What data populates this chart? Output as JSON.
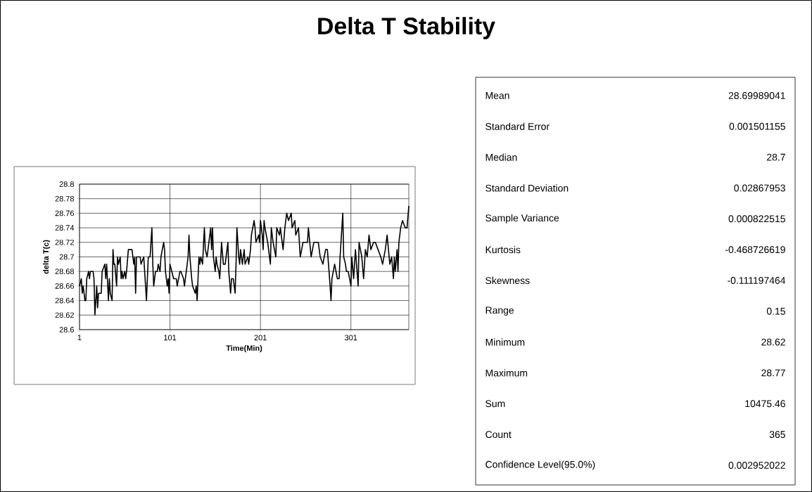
{
  "chart_data": [
    {
      "type": "line",
      "title": "Delta T Stability",
      "xlabel": "Time(Min)",
      "ylabel": "delta T(c)",
      "x": [
        1,
        3,
        4,
        5,
        7,
        8,
        9,
        11,
        12,
        13,
        16,
        17,
        18,
        20,
        21,
        22,
        25,
        26,
        29,
        30,
        31,
        33,
        34,
        35,
        37,
        38,
        39,
        40,
        42,
        43,
        44,
        46,
        47,
        48,
        49,
        51,
        52,
        53,
        55,
        56,
        59,
        60,
        61,
        62,
        63,
        64,
        66,
        68,
        69,
        72,
        74,
        75,
        77,
        79,
        81,
        82,
        83,
        85,
        87,
        88,
        90,
        91,
        94,
        95,
        96,
        98,
        99,
        100,
        101,
        103,
        105,
        108,
        109,
        112,
        113,
        116,
        117,
        120,
        121,
        122,
        123,
        125,
        126,
        129,
        130,
        131,
        133,
        134,
        135,
        137,
        139,
        140,
        142,
        144,
        146,
        147,
        148,
        149,
        151,
        152,
        153,
        155,
        156,
        158,
        160,
        162,
        165,
        166,
        168,
        169,
        171,
        173,
        174,
        175,
        177,
        178,
        179,
        181,
        183,
        184,
        187,
        188,
        190,
        191,
        194,
        195,
        196,
        199,
        200,
        201,
        203,
        204,
        205,
        206,
        209,
        212,
        213,
        215,
        218,
        219,
        222,
        223,
        226,
        228,
        230,
        232,
        235,
        236,
        239,
        240,
        243,
        245,
        248,
        251,
        253,
        254,
        257,
        260,
        262,
        265,
        267,
        270,
        273,
        275,
        278,
        279,
        280,
        283,
        286,
        288,
        289,
        291,
        292,
        293,
        295,
        296,
        298,
        301,
        302,
        304,
        306,
        309,
        310,
        313,
        315,
        317,
        319,
        321,
        323,
        326,
        328,
        331,
        334,
        336,
        339,
        341,
        344,
        346,
        348,
        349,
        350,
        352,
        353,
        354,
        356,
        358,
        361,
        363,
        365
      ],
      "series": [
        {
          "color": "#000000",
          "values": [
            28.66,
            28.67,
            28.65,
            28.66,
            28.64,
            28.64,
            28.67,
            28.68,
            28.67,
            28.68,
            28.68,
            28.67,
            28.62,
            28.66,
            28.63,
            28.65,
            28.65,
            28.68,
            28.69,
            28.67,
            28.69,
            28.64,
            28.67,
            28.65,
            28.64,
            28.71,
            28.69,
            28.69,
            28.66,
            28.7,
            28.69,
            28.7,
            28.67,
            28.68,
            28.67,
            28.68,
            28.67,
            28.68,
            28.71,
            28.71,
            28.71,
            28.7,
            28.69,
            28.7,
            28.65,
            28.7,
            28.7,
            28.7,
            28.69,
            28.7,
            28.66,
            28.64,
            28.7,
            28.7,
            28.74,
            28.69,
            28.66,
            28.68,
            28.68,
            28.69,
            28.68,
            28.7,
            28.72,
            28.71,
            28.68,
            28.66,
            28.67,
            28.65,
            28.69,
            28.68,
            28.67,
            28.67,
            28.66,
            28.68,
            28.68,
            28.67,
            28.66,
            28.69,
            28.7,
            28.73,
            28.7,
            28.67,
            28.66,
            28.65,
            28.66,
            28.64,
            28.7,
            28.69,
            28.7,
            28.69,
            28.74,
            28.71,
            28.7,
            28.72,
            28.74,
            28.71,
            28.74,
            28.7,
            28.68,
            28.7,
            28.69,
            28.68,
            28.67,
            28.72,
            28.69,
            28.69,
            28.72,
            28.68,
            28.65,
            28.67,
            28.67,
            28.65,
            28.69,
            28.74,
            28.7,
            28.69,
            28.71,
            28.69,
            28.71,
            28.69,
            28.7,
            28.69,
            28.71,
            28.73,
            28.75,
            28.74,
            28.72,
            28.73,
            28.72,
            28.75,
            28.73,
            28.71,
            28.75,
            28.74,
            28.72,
            28.69,
            28.74,
            28.72,
            28.7,
            28.74,
            28.73,
            28.74,
            28.71,
            28.74,
            28.76,
            28.75,
            28.76,
            28.74,
            28.75,
            28.73,
            28.74,
            28.7,
            28.72,
            28.72,
            28.72,
            28.74,
            28.7,
            28.72,
            28.72,
            28.72,
            28.7,
            28.69,
            28.71,
            28.71,
            28.66,
            28.64,
            28.67,
            28.69,
            28.67,
            28.67,
            28.7,
            28.74,
            28.76,
            28.7,
            28.69,
            28.68,
            28.68,
            28.66,
            28.7,
            28.67,
            28.71,
            28.66,
            28.72,
            28.7,
            28.67,
            28.71,
            28.7,
            28.73,
            28.71,
            28.72,
            28.72,
            28.71,
            28.7,
            28.69,
            28.71,
            28.73,
            28.69,
            28.7,
            28.67,
            28.7,
            28.68,
            28.71,
            28.68,
            28.72,
            28.74,
            28.75,
            28.74,
            28.74,
            28.77
          ]
        }
      ],
      "xlim": [
        1,
        365
      ],
      "ylim": [
        28.6,
        28.8
      ],
      "xticks": [
        1,
        101,
        201,
        301
      ],
      "yticks": [
        28.6,
        28.62,
        28.64,
        28.66,
        28.68,
        28.7,
        28.72,
        28.74,
        28.76,
        28.78,
        28.8
      ],
      "grid": true
    },
    {
      "type": "other",
      "categories": [
        "Mean",
        "Standard Error",
        "Median",
        "Standard Deviation",
        "Sample Variance",
        "Kurtosis",
        "Skewness",
        "Range",
        "Minimum",
        "Maximum",
        "Sum",
        "Count",
        "Confidence Level(95.0%)"
      ],
      "value_labels": [
        "28.69989041",
        "0.001501155",
        "28.7",
        "0.02867953",
        "0.000822515",
        "-0.468726619",
        "-0.111197464",
        "0.15",
        "28.62",
        "28.77",
        "10475.46",
        "365",
        "0.002952022"
      ]
    }
  ]
}
